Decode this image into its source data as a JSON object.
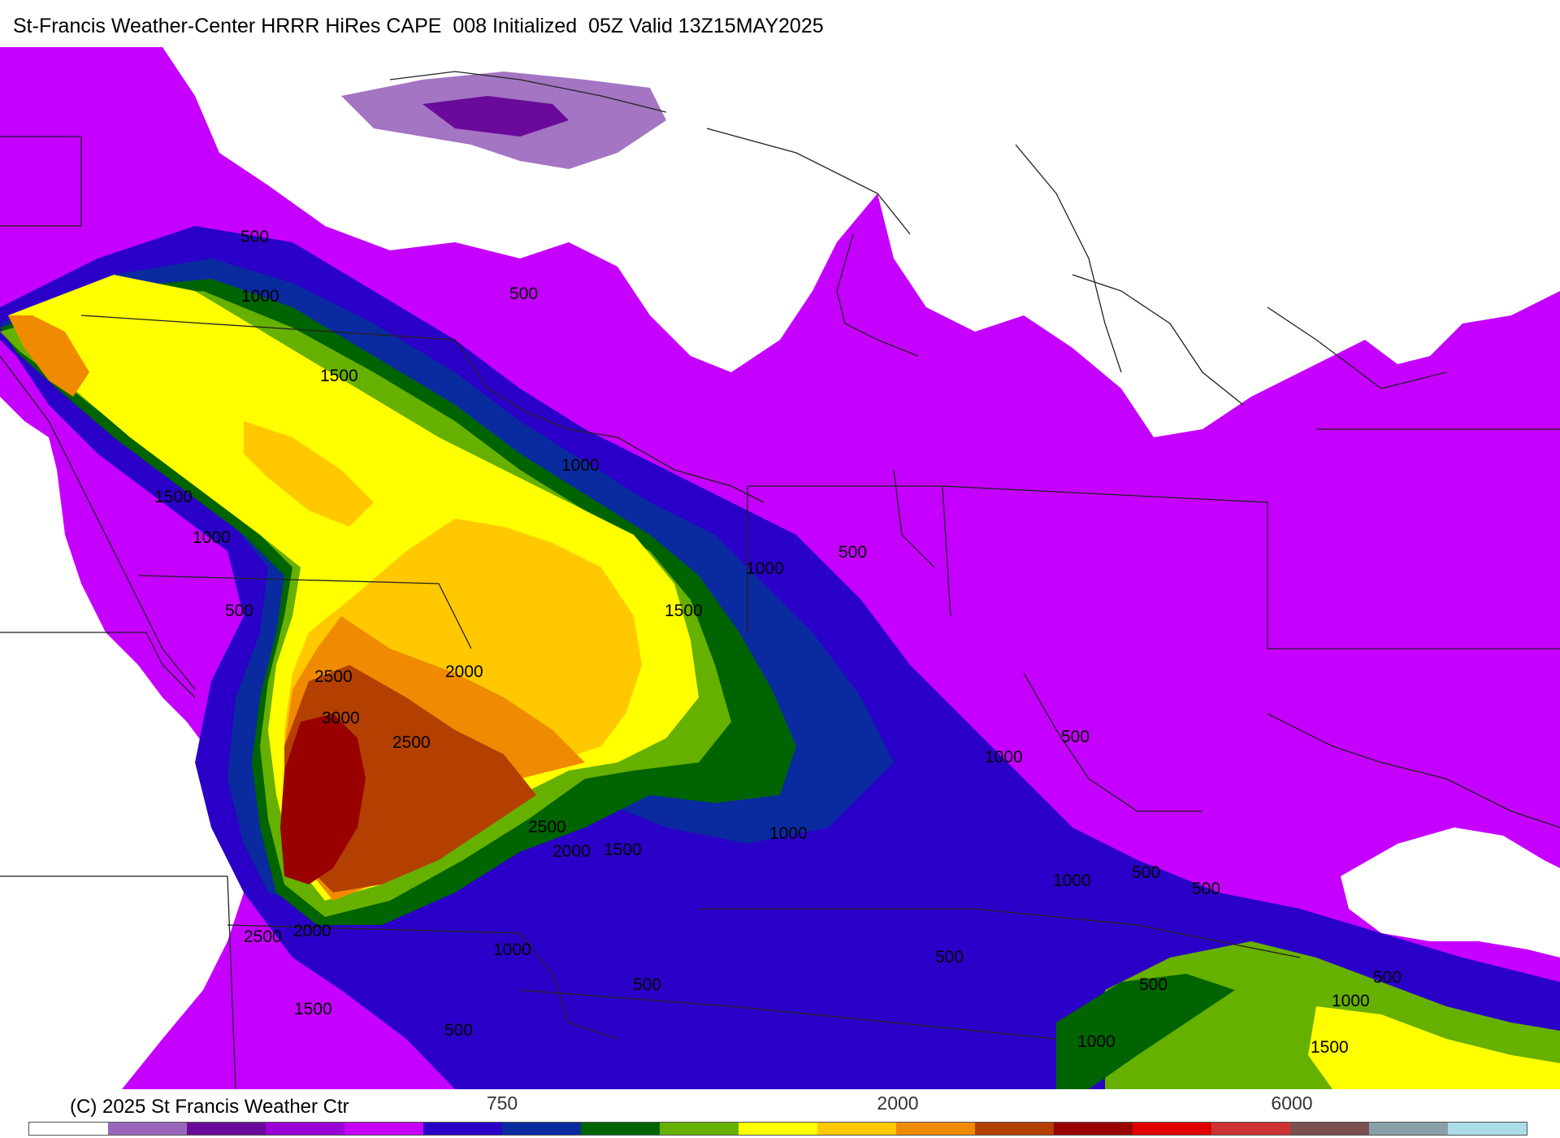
{
  "header": {
    "title": "St-Francis Weather-Center HRRR HiRes CAPE  008 Initialized  05Z Valid 13Z15MAY2025"
  },
  "footer": {
    "copyright": "(C) 2025 St Francis Weather Ctr"
  },
  "legend": {
    "tick_labels": [
      "750",
      "2000",
      "6000"
    ],
    "colors": [
      "#ffffff",
      "#9966bb",
      "#6a0a9a",
      "#9a00d6",
      "#c500ff",
      "#2a00c8",
      "#0a2aa0",
      "#006400",
      "#66b000",
      "#ffff00",
      "#ffc800",
      "#f08a00",
      "#b34000",
      "#990000",
      "#e00000",
      "#cc3333",
      "#7a5050",
      "#8aa0a8",
      "#aadde8"
    ]
  },
  "map": {
    "contour_labels": [
      "500",
      "1000",
      "500",
      "1500",
      "1000",
      "1500",
      "1000",
      "500",
      "500",
      "1000",
      "1500",
      "2000",
      "2500",
      "3000",
      "2500",
      "2500",
      "2000",
      "1500",
      "1000",
      "500",
      "1000",
      "500",
      "1000",
      "500",
      "500",
      "2500",
      "2000",
      "1000",
      "500",
      "1500",
      "500",
      "500",
      "500",
      "1000",
      "1000",
      "1500"
    ]
  }
}
